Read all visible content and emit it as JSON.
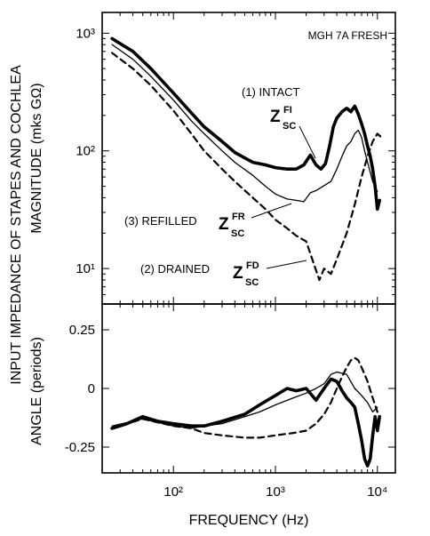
{
  "chart_data": [
    {
      "type": "line",
      "panel": "magnitude",
      "title": "MGH 7A FRESH",
      "xlabel": "FREQUENCY (Hz)",
      "ylabel_outer": "INPUT IMPEDANCE OF STAPES AND COCHLEA",
      "ylabel": "MAGNITUDE (mks GΩ)",
      "x_scale": "log",
      "y_scale": "log",
      "xlim": [
        20,
        15000
      ],
      "ylim": [
        5,
        1500
      ],
      "x_ticks": [
        100,
        1000,
        10000
      ],
      "x_tick_labels": [
        "10²",
        "10³",
        "10⁴"
      ],
      "y_ticks": [
        10,
        100,
        1000
      ],
      "y_tick_labels": [
        "10¹",
        "10²",
        "10³"
      ],
      "annotations": [
        {
          "text": "(1) INTACT",
          "z_main": "Z",
          "z_sup": "FI",
          "z_sub": "SC"
        },
        {
          "text": "(3) REFILLED",
          "z_main": "Z",
          "z_sup": "FR",
          "z_sub": "SC"
        },
        {
          "text": "(2) DRAINED",
          "z_main": "Z",
          "z_sup": "FD",
          "z_sub": "SC"
        }
      ],
      "series": [
        {
          "key": "intact",
          "style": "thick",
          "x": [
            25,
            40,
            60,
            100,
            150,
            200,
            300,
            400,
            500,
            600,
            800,
            1000,
            1300,
            1600,
            1900,
            2200,
            2500,
            2800,
            3100,
            3400,
            3700,
            4000,
            4500,
            5000,
            5500,
            6000,
            6500,
            7000,
            7500,
            8000,
            8500,
            9000,
            9500,
            10000,
            10500
          ],
          "y": [
            900,
            700,
            500,
            310,
            210,
            160,
            120,
            97,
            87,
            80,
            76,
            72,
            70,
            70,
            76,
            92,
            76,
            70,
            78,
            110,
            160,
            190,
            215,
            230,
            215,
            240,
            205,
            170,
            140,
            110,
            90,
            70,
            50,
            32,
            38
          ]
        },
        {
          "key": "refilled",
          "style": "thin",
          "x": [
            25,
            40,
            60,
            100,
            150,
            200,
            300,
            400,
            600,
            800,
            1000,
            1300,
            1600,
            1900,
            2200,
            2500,
            3500,
            4000,
            4500,
            5000,
            5500,
            6000,
            6500,
            7000,
            7500,
            8000,
            9000,
            10000
          ],
          "y": [
            800,
            600,
            430,
            270,
            180,
            140,
            100,
            80,
            62,
            50,
            43,
            39,
            38,
            37,
            44,
            46,
            55,
            70,
            90,
            110,
            120,
            140,
            150,
            130,
            100,
            80,
            55,
            45
          ]
        },
        {
          "key": "drained",
          "style": "dashed",
          "x": [
            25,
            40,
            60,
            100,
            150,
            200,
            300,
            400,
            600,
            800,
            1000,
            1300,
            1600,
            2000,
            2300,
            2700,
            3000,
            3500,
            4000,
            5000,
            6000,
            7000,
            8000,
            9000,
            10000,
            11000
          ],
          "y": [
            680,
            500,
            360,
            220,
            140,
            100,
            70,
            55,
            40,
            32,
            26,
            22,
            19,
            17,
            12,
            8,
            10,
            9,
            12,
            20,
            35,
            60,
            90,
            120,
            140,
            130
          ]
        }
      ]
    },
    {
      "type": "line",
      "panel": "angle",
      "ylabel": "ANGLE (periods)",
      "xlabel": "FREQUENCY (Hz)",
      "x_scale": "log",
      "xlim": [
        20,
        15000
      ],
      "ylim": [
        -0.36,
        0.36
      ],
      "x_ticks": [
        100,
        1000,
        10000
      ],
      "x_tick_labels": [
        "10²",
        "10³",
        "10⁴"
      ],
      "y_ticks": [
        0.25,
        0,
        -0.25
      ],
      "y_tick_labels": [
        "0.25",
        "0",
        "-0.25"
      ],
      "series": [
        {
          "key": "intact",
          "style": "thick",
          "x": [
            25,
            35,
            50,
            70,
            100,
            150,
            200,
            300,
            500,
            700,
            1000,
            1300,
            1600,
            2000,
            2500,
            3000,
            3500,
            4000,
            4500,
            5000,
            5500,
            6000,
            6500,
            7000,
            7500,
            8000,
            8500,
            9000,
            9500,
            10000,
            10500
          ],
          "y": [
            -0.17,
            -0.15,
            -0.12,
            -0.14,
            -0.15,
            -0.16,
            -0.16,
            -0.14,
            -0.11,
            -0.07,
            -0.03,
            0.0,
            -0.01,
            0.0,
            -0.05,
            0.0,
            0.04,
            0.03,
            -0.01,
            -0.04,
            -0.06,
            -0.08,
            -0.15,
            -0.22,
            -0.3,
            -0.33,
            -0.3,
            -0.2,
            -0.12,
            -0.18,
            -0.12
          ]
        },
        {
          "key": "refilled",
          "style": "thin",
          "x": [
            25,
            50,
            100,
            150,
            200,
            300,
            500,
            700,
            1000,
            1500,
            2000,
            2500,
            3000,
            3500,
            4000,
            5000,
            6000,
            7000,
            8000,
            9000,
            10000
          ],
          "y": [
            -0.16,
            -0.13,
            -0.16,
            -0.17,
            -0.16,
            -0.15,
            -0.12,
            -0.1,
            -0.07,
            -0.04,
            -0.02,
            0.0,
            0.02,
            0.06,
            0.07,
            0.06,
            0.0,
            -0.03,
            -0.06,
            -0.1,
            -0.08
          ]
        },
        {
          "key": "drained",
          "style": "dashed",
          "x": [
            25,
            50,
            100,
            150,
            200,
            300,
            500,
            700,
            1000,
            1500,
            2000,
            2500,
            3000,
            3500,
            4000,
            4500,
            5000,
            5500,
            6000,
            6500,
            7000,
            8000,
            9000,
            10000
          ],
          "y": [
            -0.17,
            -0.13,
            -0.16,
            -0.17,
            -0.19,
            -0.2,
            -0.21,
            -0.21,
            -0.2,
            -0.19,
            -0.18,
            -0.15,
            -0.11,
            -0.06,
            0.0,
            0.05,
            0.09,
            0.12,
            0.13,
            0.12,
            0.09,
            0.03,
            -0.04,
            -0.1
          ]
        }
      ]
    }
  ]
}
